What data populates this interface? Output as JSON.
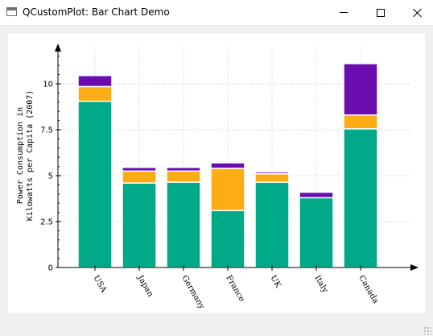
{
  "window": {
    "title": "QCustomPlot: Bar Chart Demo",
    "icon": "window-icon",
    "controls": [
      "minimize-icon",
      "maximize-icon",
      "close-icon"
    ]
  },
  "chart_data": {
    "type": "bar",
    "stacked": true,
    "categories": [
      "USA",
      "Japan",
      "Germany",
      "France",
      "UK",
      "Italy",
      "Canada"
    ],
    "series": [
      {
        "values": [
          9.05,
          4.6,
          4.65,
          3.1,
          4.65,
          3.8,
          7.55
        ],
        "color": "#00a987"
      },
      {
        "values": [
          0.8,
          0.65,
          0.6,
          2.3,
          0.45,
          0.0,
          0.75
        ],
        "color": "#fcac14"
      },
      {
        "values": [
          0.6,
          0.2,
          0.2,
          0.3,
          0.1,
          0.3,
          2.8
        ],
        "color": "#6a0cb0"
      }
    ],
    "ylabel": [
      "Power Consumption in",
      "Kilowatts per Capita (2007)"
    ],
    "yticks": [
      0,
      2.5,
      5,
      7.5,
      10
    ],
    "ytick_labels": [
      "0",
      "2.5",
      "5",
      "7.5",
      "10"
    ],
    "ylim": [
      0,
      12.1
    ],
    "xlim": [
      0.1,
      8.0
    ],
    "grid": "dotted"
  }
}
